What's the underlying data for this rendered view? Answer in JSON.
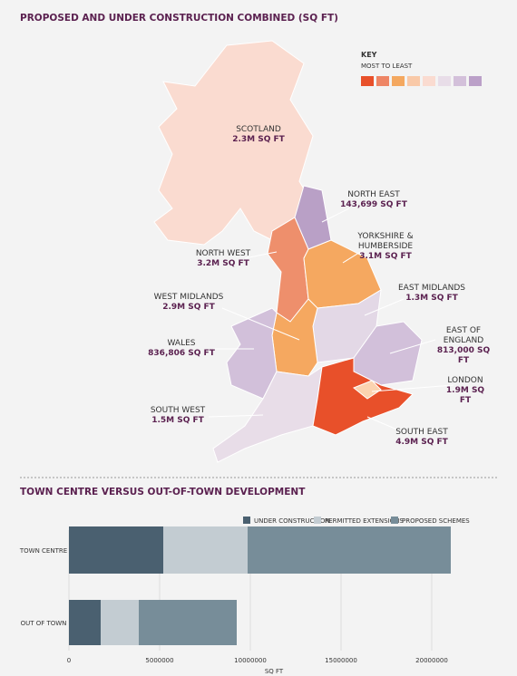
{
  "map": {
    "title": "PROPOSED AND UNDER CONSTRUCTION COMBINED (SQ FT)",
    "key_title": "KEY",
    "key_subtitle": "MOST TO LEAST",
    "key_colors": [
      "#e8502a",
      "#ee8565",
      "#f4a860",
      "#f9c9a8",
      "#fadbd0",
      "#e8dde8",
      "#d3c0da",
      "#bba0c8"
    ],
    "regions": [
      {
        "name": "SCOTLAND",
        "value": "2.3M SQ FT"
      },
      {
        "name": "NORTH EAST",
        "value": "143,699 SQ FT"
      },
      {
        "name": "NORTH WEST",
        "value": "3.2M SQ FT"
      },
      {
        "name": "YORKSHIRE &\nHUMBERSIDE",
        "value": "3.1M SQ FT"
      },
      {
        "name": "EAST MIDLANDS",
        "value": "1.3M SQ FT"
      },
      {
        "name": "WEST MIDLANDS",
        "value": "2.9M SQ FT"
      },
      {
        "name": "EAST OF ENGLAND",
        "value": "813,000 SQ FT"
      },
      {
        "name": "WALES",
        "value": "836,806 SQ FT"
      },
      {
        "name": "LONDON",
        "value": "1.9M SQ FT"
      },
      {
        "name": "SOUTH WEST",
        "value": "1.5M SQ FT"
      },
      {
        "name": "SOUTH EAST",
        "value": "4.9M SQ FT"
      }
    ]
  },
  "chart_data": {
    "type": "stacked-barh",
    "title": "TOWN CENTRE VERSUS OUT-OF-TOWN DEVELOPMENT",
    "categories": [
      "TOWN CENTRE",
      "OUT OF TOWN"
    ],
    "series": [
      {
        "name": "UNDER CONSTRUCTION",
        "color": "#4a6070",
        "values": [
          5200000,
          1750000
        ]
      },
      {
        "name": "PERMITTED EXTENSIONS",
        "color": "#c3ccd2",
        "values": [
          4650000,
          2100000
        ]
      },
      {
        "name": "PROPOSED SCHEMES",
        "color": "#778d99",
        "values": [
          11200000,
          5400000
        ]
      }
    ],
    "xlim": [
      0,
      21500000
    ],
    "xticks": [
      0,
      5000000,
      10000000,
      15000000,
      20000000
    ],
    "xlabel": "SQ FT",
    "grid": true
  }
}
